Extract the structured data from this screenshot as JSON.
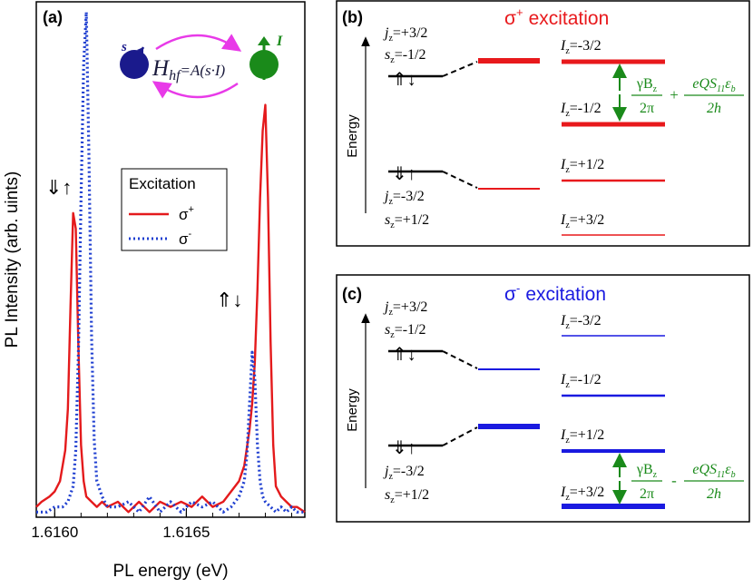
{
  "chart_data": [
    {
      "type": "line",
      "panel_label": "(a)",
      "xlabel": "PL energy (eV)",
      "ylabel": "PL Intensity (arb. uints)",
      "xlim": [
        1.61593,
        1.61695
      ],
      "ylim": [
        0,
        1.0
      ],
      "x_ticks": [
        1.616,
        1.6165
      ],
      "x_tick_labels": [
        "1.6160",
        "1.6165"
      ],
      "x_minor_step": 0.0001,
      "legend": {
        "title": "Excitation",
        "placement": "center-right",
        "entries": [
          {
            "label": "σ+",
            "base": "σ",
            "sup": "+"
          },
          {
            "label": "σ-",
            "base": "σ",
            "sup": "-"
          }
        ]
      },
      "annotations": {
        "left_peak_spin": "⇓↑",
        "right_peak_spin": "⇑↓",
        "hamiltonian": {
          "H": "H",
          "sub": "hf",
          "rhs": "=A(s·I)"
        },
        "electron_label": "s",
        "nucleus_label": "I"
      },
      "series": [
        {
          "name": "σ+",
          "color": "#e41a1c",
          "style": "solid",
          "x": [
            1.61593,
            1.61595,
            1.61598,
            1.616,
            1.61602,
            1.61603,
            1.61604,
            1.61605,
            1.61606,
            1.61607,
            1.61608,
            1.61609,
            1.6161,
            1.61611,
            1.61612,
            1.61614,
            1.61616,
            1.61618,
            1.6162,
            1.61624,
            1.61628,
            1.61632,
            1.61636,
            1.6164,
            1.61644,
            1.61648,
            1.61652,
            1.61656,
            1.6166,
            1.61664,
            1.61667,
            1.6167,
            1.61672,
            1.61674,
            1.61675,
            1.61676,
            1.61677,
            1.61678,
            1.61679,
            1.6168,
            1.61681,
            1.61682,
            1.61683,
            1.61684,
            1.61686,
            1.61688,
            1.6169,
            1.61692,
            1.61695
          ],
          "y": [
            0.02,
            0.03,
            0.04,
            0.05,
            0.07,
            0.1,
            0.13,
            0.21,
            0.41,
            0.59,
            0.56,
            0.33,
            0.14,
            0.07,
            0.04,
            0.03,
            0.02,
            0.03,
            0.02,
            0.03,
            0.01,
            0.03,
            0.01,
            0.03,
            0.02,
            0.03,
            0.02,
            0.04,
            0.02,
            0.03,
            0.05,
            0.07,
            0.1,
            0.17,
            0.22,
            0.3,
            0.44,
            0.62,
            0.75,
            0.8,
            0.62,
            0.34,
            0.14,
            0.06,
            0.04,
            0.03,
            0.02,
            0.02,
            0.01
          ]
        },
        {
          "name": "σ-",
          "color": "#1f3fd0",
          "style": "dotted",
          "x": [
            1.61593,
            1.61597,
            1.616,
            1.61603,
            1.61605,
            1.61607,
            1.61608,
            1.61609,
            1.6161,
            1.61611,
            1.61612,
            1.61613,
            1.61614,
            1.61615,
            1.61616,
            1.61618,
            1.6162,
            1.61624,
            1.61628,
            1.61632,
            1.61636,
            1.6164,
            1.61644,
            1.61648,
            1.61652,
            1.61656,
            1.6166,
            1.61664,
            1.61667,
            1.6167,
            1.61672,
            1.61673,
            1.61674,
            1.61675,
            1.61676,
            1.61677,
            1.61678,
            1.61679,
            1.6168,
            1.61682,
            1.61684,
            1.61686,
            1.61688,
            1.6169,
            1.61692,
            1.61695
          ],
          "y": [
            0.01,
            0.01,
            0.02,
            0.02,
            0.03,
            0.06,
            0.13,
            0.32,
            0.62,
            0.88,
            0.98,
            0.7,
            0.35,
            0.15,
            0.07,
            0.04,
            0.02,
            0.02,
            0.03,
            0.01,
            0.04,
            0.01,
            0.03,
            0.01,
            0.03,
            0.02,
            0.03,
            0.01,
            0.02,
            0.04,
            0.07,
            0.12,
            0.22,
            0.32,
            0.27,
            0.14,
            0.07,
            0.04,
            0.03,
            0.02,
            0.01,
            0.02,
            0.01,
            0.02,
            0.01,
            0.01
          ]
        }
      ]
    },
    {
      "type": "diagram",
      "panel_label": "(b)",
      "title": "excitation",
      "title_sigma": "σ",
      "title_sup": "+",
      "color": "#e8191c",
      "energy_label": "Energy",
      "upper_state": {
        "j": "=+3/2",
        "s": "=-1/2",
        "spin": "⇑↓"
      },
      "lower_state": {
        "j": "=-3/2",
        "s": "=+1/2",
        "spin": "⇓↑"
      },
      "nuclear_levels": [
        "=-3/2",
        "=-1/2",
        "=+1/2",
        "=+3/2"
      ],
      "formula": {
        "num1": "γB",
        "num1_sub": "z",
        "den1": "2π",
        "op": "+",
        "num2": "eQS",
        "num2_sub": "11",
        "num2_tail": "ε",
        "num2_tail_sub": "b",
        "den2": "2h"
      }
    },
    {
      "type": "diagram",
      "panel_label": "(c)",
      "title": "excitation",
      "title_sigma": "σ",
      "title_sup": "-",
      "color": "#1a1ae0",
      "energy_label": "Energy",
      "upper_state": {
        "j": "=+3/2",
        "s": "=-1/2",
        "spin": "⇑↓"
      },
      "lower_state": {
        "j": "=-3/2",
        "s": "=+1/2",
        "spin": "⇓↑"
      },
      "nuclear_levels": [
        "=-3/2",
        "=-1/2",
        "=+1/2",
        "=+3/2"
      ],
      "formula": {
        "num1": "γB",
        "num1_sub": "z",
        "den1": "2π",
        "op": "-",
        "num2": "eQS",
        "num2_sub": "11",
        "num2_tail": "ε",
        "num2_tail_sub": "b",
        "den2": "2h"
      }
    }
  ]
}
